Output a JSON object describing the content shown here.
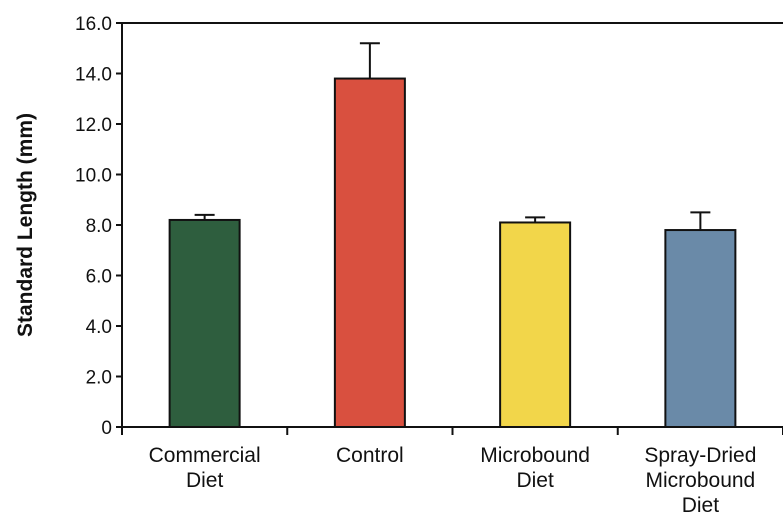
{
  "chart_data": {
    "type": "bar",
    "title": "",
    "xlabel": "",
    "ylabel": "Standard Length (mm)",
    "ylim": [
      0,
      16
    ],
    "yticks": [
      0,
      2,
      4,
      6,
      8,
      10,
      12,
      14,
      16
    ],
    "ytick_labels": [
      "0",
      "2.0",
      "4.0",
      "6.0",
      "8.0",
      "10.0",
      "12.0",
      "14.0",
      "16.0"
    ],
    "grid": false,
    "categories": [
      [
        "Commercial",
        "Diet"
      ],
      [
        "Control"
      ],
      [
        "Microbound",
        "Diet"
      ],
      [
        "Spray-Dried",
        "Microbound",
        "Diet"
      ]
    ],
    "values": [
      8.2,
      13.8,
      8.1,
      7.8
    ],
    "errors": [
      0.2,
      1.4,
      0.2,
      0.7
    ],
    "colors": [
      "#2e5e3e",
      "#d9503f",
      "#f2d64a",
      "#6a8aa8"
    ]
  }
}
